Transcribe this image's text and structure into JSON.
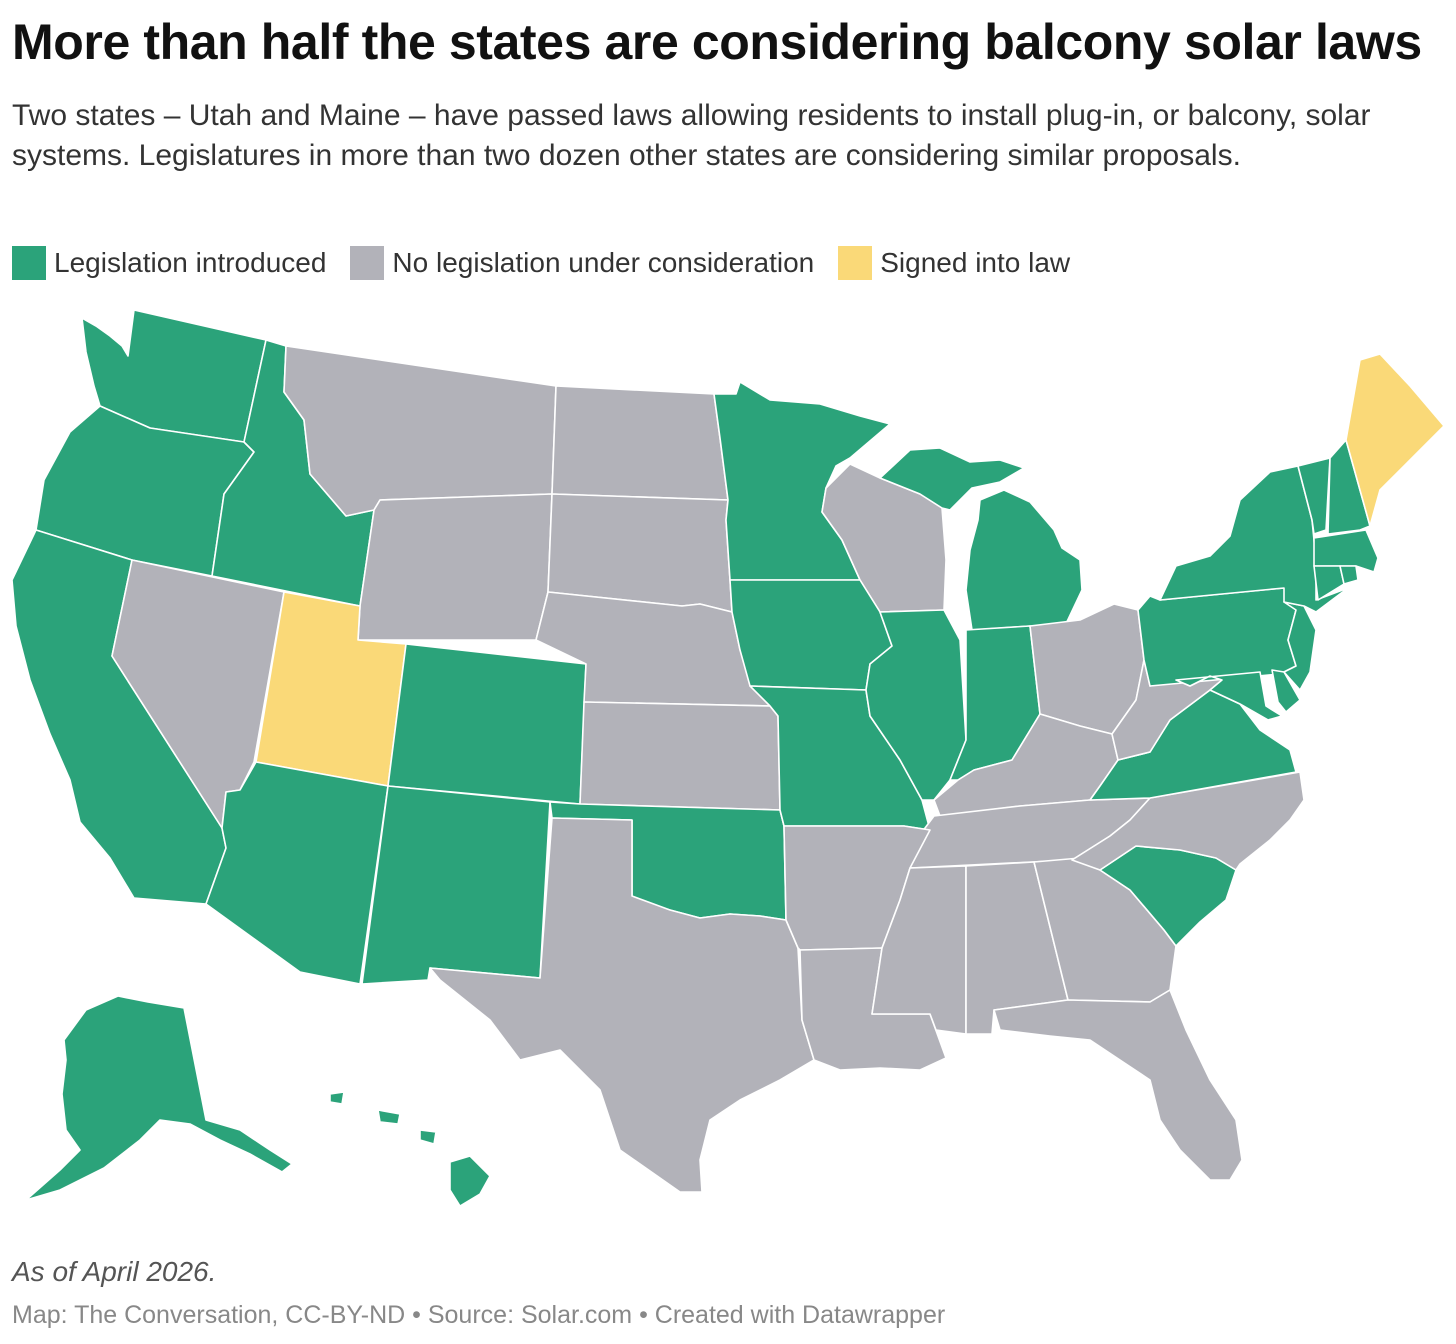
{
  "title": "More than half the states are considering balcony solar laws",
  "subtitle": "Two states – Utah and Maine – have passed laws allowing residents to install plug-in, or balcony, solar systems. Legislatures in more than two dozen other states are considering similar proposals.",
  "legend": [
    {
      "label": "Legislation introduced",
      "color": "#2ba37a"
    },
    {
      "label": "No legislation under consideration",
      "color": "#b2b2b9"
    },
    {
      "label": "Signed into law",
      "color": "#fad978"
    }
  ],
  "notes": "As of April 2026.",
  "footer": "Map: The Conversation, CC-BY-ND • Source: Solar.com • Created with Datawrapper",
  "map_data": {
    "type": "choropleth",
    "region": "United States",
    "colors": {
      "Legislation introduced": "#2ba37a",
      "No legislation under consideration": "#b2b2b9",
      "Signed into law": "#fad978"
    },
    "signed_into_law": [
      "Utah",
      "Maine"
    ],
    "legislation_introduced": [
      "Washington",
      "Oregon",
      "California",
      "Idaho",
      "Arizona",
      "Colorado",
      "New Mexico",
      "Oklahoma",
      "Minnesota",
      "Iowa",
      "Missouri",
      "Illinois",
      "Indiana",
      "Michigan",
      "Virginia",
      "South Carolina",
      "Pennsylvania",
      "New York",
      "New Jersey",
      "Delaware",
      "Maryland",
      "Vermont",
      "New Hampshire",
      "Massachusetts",
      "Connecticut",
      "Rhode Island",
      "Alaska",
      "Hawaii"
    ],
    "no_legislation": [
      "Nevada",
      "Montana",
      "Wyoming",
      "North Dakota",
      "South Dakota",
      "Nebraska",
      "Kansas",
      "Texas",
      "Arkansas",
      "Louisiana",
      "Wisconsin",
      "Ohio",
      "Kentucky",
      "West Virginia",
      "Tennessee",
      "Mississippi",
      "Alabama",
      "Georgia",
      "Florida",
      "North Carolina"
    ]
  }
}
